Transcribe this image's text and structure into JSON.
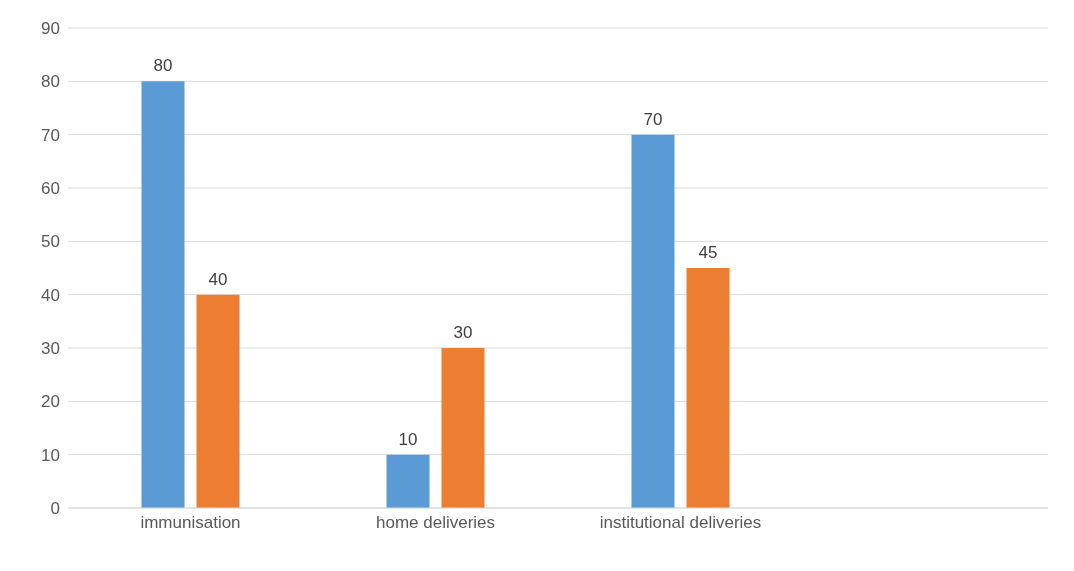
{
  "chart_data": {
    "type": "bar",
    "categories": [
      "immunisation",
      "home deliveries",
      "institutional deliveries",
      null
    ],
    "series": [
      {
        "color": "#5b9bd5",
        "values": [
          80,
          10,
          70,
          null
        ]
      },
      {
        "color": "#ed7d31",
        "values": [
          40,
          30,
          45,
          null
        ]
      }
    ],
    "ylim": [
      0,
      90
    ],
    "yticks": [
      0,
      10,
      20,
      30,
      40,
      50,
      60,
      70,
      80,
      90
    ],
    "grid": "y",
    "data_labels": true,
    "legend": false
  }
}
